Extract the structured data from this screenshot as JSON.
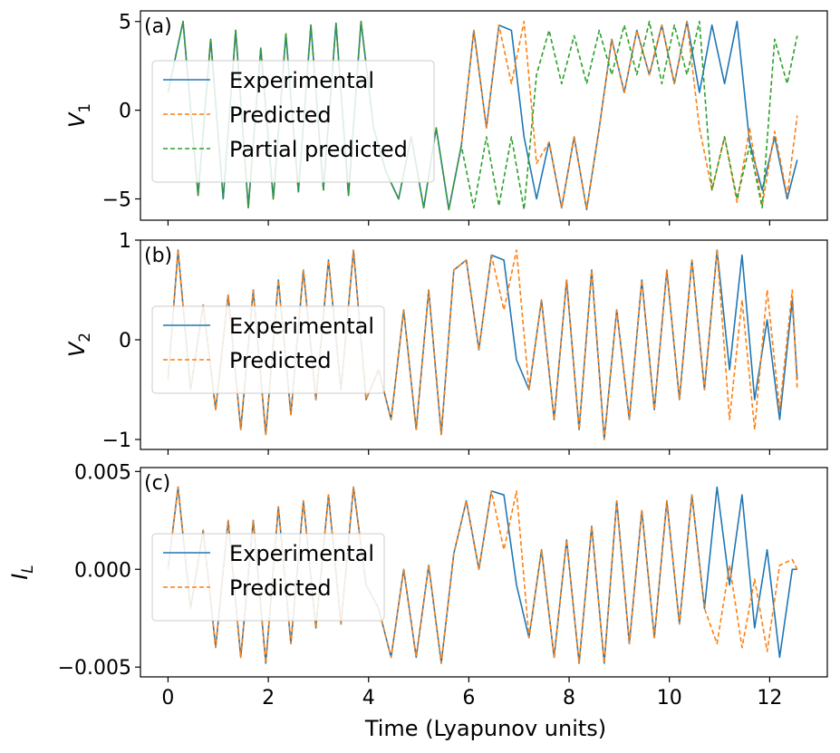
{
  "xlabel": "Time (Lyapunov units)",
  "x_ticks": [
    "0",
    "2",
    "4",
    "6",
    "8",
    "10",
    "12"
  ],
  "colors": {
    "experimental": "#1f77b4",
    "predicted": "#ff7f0e",
    "partial": "#2ca02c"
  },
  "chart_data": [
    {
      "type": "line",
      "panel": "(a)",
      "ylabel": "V_1",
      "xlim": [
        -0.55,
        13.15
      ],
      "ylim": [
        -6.2,
        5.6
      ],
      "x_ticks": [
        0,
        2,
        4,
        6,
        8,
        10,
        12
      ],
      "y_ticks": [
        -5,
        0,
        5
      ],
      "y_tick_labels": [
        "−5",
        "0",
        "5"
      ],
      "legend": "upper-left",
      "series": [
        {
          "name": "Experimental",
          "style": "solid",
          "x": [
            0,
            0.3,
            0.6,
            0.85,
            1.1,
            1.35,
            1.6,
            1.85,
            2.1,
            2.35,
            2.6,
            2.85,
            3.1,
            3.35,
            3.6,
            3.85,
            4.1,
            4.35,
            4.6,
            4.85,
            5.1,
            5.35,
            5.6,
            5.85,
            6.1,
            6.35,
            6.6,
            6.85,
            7.1,
            7.35,
            7.6,
            7.85,
            8.1,
            8.35,
            8.6,
            8.85,
            9.1,
            9.35,
            9.6,
            9.85,
            10.1,
            10.35,
            10.6,
            10.85,
            11.1,
            11.35,
            11.6,
            11.85,
            12.1,
            12.35,
            12.55
          ],
          "y": [
            1.0,
            5.0,
            -4.8,
            4.0,
            -5.0,
            4.5,
            -5.5,
            3.5,
            -5.0,
            4.3,
            -4.6,
            4.8,
            -4.5,
            4.9,
            -4.8,
            5.0,
            -1.0,
            -3.5,
            -5.0,
            -1.5,
            -5.5,
            -1.0,
            -5.6,
            -2.0,
            4.5,
            -1.0,
            4.8,
            4.5,
            -1.5,
            -5.0,
            -1.8,
            -5.5,
            -1.5,
            -5.6,
            -1.0,
            4.0,
            1.0,
            4.5,
            2.0,
            4.8,
            1.5,
            5.0,
            1.0,
            4.8,
            1.5,
            5.0,
            -1.8,
            -4.5,
            -1.5,
            -5.0,
            -2.8
          ]
        },
        {
          "name": "Predicted",
          "style": "dashed",
          "x": [
            0,
            0.3,
            0.6,
            0.85,
            1.1,
            1.35,
            1.6,
            1.85,
            2.1,
            2.35,
            2.6,
            2.85,
            3.1,
            3.35,
            3.6,
            3.85,
            4.1,
            4.35,
            4.6,
            4.85,
            5.1,
            5.35,
            5.6,
            5.85,
            6.1,
            6.35,
            6.6,
            6.85,
            7.1,
            7.35,
            7.6,
            7.85,
            8.1,
            8.35,
            8.6,
            8.85,
            9.1,
            9.35,
            9.6,
            9.85,
            10.1,
            10.35,
            10.6,
            10.85,
            11.1,
            11.35,
            11.6,
            11.85,
            12.1,
            12.35,
            12.55
          ],
          "y": [
            1.0,
            5.0,
            -4.8,
            4.0,
            -5.0,
            4.5,
            -5.5,
            3.5,
            -5.0,
            4.3,
            -4.6,
            4.8,
            -4.5,
            4.9,
            -4.8,
            5.0,
            -1.0,
            -3.5,
            -5.0,
            -1.5,
            -5.5,
            -1.0,
            -5.6,
            -2.0,
            4.5,
            -1.0,
            4.8,
            1.5,
            5.0,
            -3.0,
            -1.8,
            -5.5,
            -1.5,
            -5.6,
            -1.0,
            4.0,
            1.0,
            4.5,
            2.0,
            4.8,
            1.5,
            5.0,
            -1.0,
            -4.5,
            -1.5,
            -5.2,
            -1.0,
            -5.4,
            -1.2,
            -4.8,
            -0.3
          ]
        },
        {
          "name": "Partial predicted",
          "style": "dashed",
          "x": [
            0,
            0.3,
            0.6,
            0.85,
            1.1,
            1.35,
            1.6,
            1.85,
            2.1,
            2.35,
            2.6,
            2.85,
            3.1,
            3.35,
            3.6,
            3.85,
            4.1,
            4.35,
            4.6,
            4.85,
            5.1,
            5.35,
            5.6,
            5.85,
            6.1,
            6.35,
            6.6,
            6.85,
            7.1,
            7.35,
            7.6,
            7.85,
            8.1,
            8.35,
            8.6,
            8.85,
            9.1,
            9.35,
            9.6,
            9.85,
            10.1,
            10.35,
            10.6,
            10.85,
            11.1,
            11.35,
            11.6,
            11.85,
            12.1,
            12.35,
            12.55
          ],
          "y": [
            1.0,
            5.0,
            -4.8,
            4.0,
            -5.0,
            4.5,
            -5.5,
            3.5,
            -5.0,
            4.3,
            -4.6,
            4.8,
            -4.5,
            4.9,
            -4.8,
            5.0,
            -1.0,
            -3.5,
            -5.0,
            -1.5,
            -5.5,
            -1.0,
            -5.6,
            -2.0,
            -5.5,
            -1.5,
            -5.4,
            -1.5,
            -5.6,
            2.0,
            4.5,
            1.5,
            4.2,
            1.5,
            4.5,
            2.0,
            4.8,
            2.0,
            5.0,
            1.5,
            4.8,
            2.0,
            5.0,
            -4.5,
            -1.5,
            -5.0,
            -2.0,
            -5.5,
            4.0,
            1.5,
            4.2
          ]
        }
      ]
    },
    {
      "type": "line",
      "panel": "(b)",
      "ylabel": "V_2",
      "xlim": [
        -0.55,
        13.15
      ],
      "ylim": [
        -1.1,
        1.0
      ],
      "x_ticks": [
        0,
        2,
        4,
        6,
        8,
        10,
        12
      ],
      "y_ticks": [
        -1,
        0,
        1
      ],
      "y_tick_labels": [
        "−1",
        "0",
        "1"
      ],
      "legend": "center-left",
      "series": [
        {
          "name": "Experimental",
          "style": "solid",
          "x": [
            0,
            0.2,
            0.45,
            0.7,
            0.95,
            1.2,
            1.45,
            1.7,
            1.95,
            2.2,
            2.45,
            2.7,
            2.95,
            3.2,
            3.45,
            3.7,
            3.95,
            4.2,
            4.45,
            4.7,
            4.95,
            5.2,
            5.45,
            5.7,
            5.95,
            6.2,
            6.45,
            6.7,
            6.95,
            7.2,
            7.45,
            7.7,
            7.95,
            8.2,
            8.45,
            8.7,
            8.95,
            9.2,
            9.45,
            9.7,
            9.95,
            10.2,
            10.45,
            10.7,
            10.95,
            11.2,
            11.45,
            11.7,
            11.95,
            12.2,
            12.45,
            12.55
          ],
          "y": [
            -0.4,
            0.9,
            -0.5,
            0.35,
            -0.7,
            0.45,
            -0.9,
            0.5,
            -0.95,
            0.6,
            -0.75,
            0.7,
            -0.6,
            0.8,
            -0.5,
            0.9,
            -0.6,
            -0.3,
            -0.8,
            0.3,
            -0.9,
            0.5,
            -0.95,
            0.7,
            0.8,
            -0.1,
            0.85,
            0.8,
            -0.2,
            -0.5,
            0.4,
            -0.8,
            0.6,
            -0.9,
            0.7,
            -1.0,
            0.3,
            -0.8,
            0.6,
            -0.7,
            0.7,
            -0.6,
            0.8,
            -0.5,
            0.9,
            -0.3,
            0.85,
            -0.6,
            0.2,
            -0.8,
            0.4,
            -0.4
          ]
        },
        {
          "name": "Predicted",
          "style": "dashed",
          "x": [
            0,
            0.2,
            0.45,
            0.7,
            0.95,
            1.2,
            1.45,
            1.7,
            1.95,
            2.2,
            2.45,
            2.7,
            2.95,
            3.2,
            3.45,
            3.7,
            3.95,
            4.2,
            4.45,
            4.7,
            4.95,
            5.2,
            5.45,
            5.7,
            5.95,
            6.2,
            6.45,
            6.7,
            6.95,
            7.2,
            7.45,
            7.7,
            7.95,
            8.2,
            8.45,
            8.7,
            8.95,
            9.2,
            9.45,
            9.7,
            9.95,
            10.2,
            10.45,
            10.7,
            10.95,
            11.2,
            11.45,
            11.7,
            11.95,
            12.2,
            12.45,
            12.55
          ],
          "y": [
            -0.4,
            0.9,
            -0.5,
            0.35,
            -0.7,
            0.45,
            -0.9,
            0.5,
            -0.95,
            0.6,
            -0.75,
            0.7,
            -0.6,
            0.8,
            -0.5,
            0.9,
            -0.6,
            -0.3,
            -0.8,
            0.3,
            -0.9,
            0.5,
            -0.95,
            0.7,
            0.8,
            -0.1,
            0.85,
            0.3,
            0.9,
            -0.5,
            0.4,
            -0.8,
            0.6,
            -0.9,
            0.7,
            -1.0,
            0.3,
            -0.8,
            0.6,
            -0.7,
            0.7,
            -0.6,
            0.8,
            -0.5,
            0.9,
            -0.8,
            0.4,
            -0.9,
            0.5,
            -0.7,
            0.5,
            -0.5
          ]
        }
      ]
    },
    {
      "type": "line",
      "panel": "(c)",
      "ylabel": "I_L",
      "xlim": [
        -0.55,
        13.15
      ],
      "ylim": [
        -0.0055,
        0.0052
      ],
      "x_ticks": [
        0,
        2,
        4,
        6,
        8,
        10,
        12
      ],
      "y_ticks": [
        -0.005,
        0,
        0.005
      ],
      "y_tick_labels": [
        "−0.005",
        "0.000",
        "0.005"
      ],
      "legend": "center-left",
      "series": [
        {
          "name": "Experimental",
          "style": "solid",
          "x": [
            0,
            0.2,
            0.45,
            0.7,
            0.95,
            1.2,
            1.45,
            1.7,
            1.95,
            2.2,
            2.45,
            2.7,
            2.95,
            3.2,
            3.45,
            3.7,
            3.95,
            4.2,
            4.45,
            4.7,
            4.95,
            5.2,
            5.45,
            5.7,
            5.95,
            6.2,
            6.45,
            6.7,
            6.95,
            7.2,
            7.45,
            7.7,
            7.95,
            8.2,
            8.45,
            8.7,
            8.95,
            9.2,
            9.45,
            9.7,
            9.95,
            10.2,
            10.45,
            10.7,
            10.95,
            11.2,
            11.45,
            11.7,
            11.95,
            12.2,
            12.45,
            12.55
          ],
          "y": [
            0.0,
            0.0042,
            -0.002,
            0.002,
            -0.004,
            0.0025,
            -0.0045,
            0.0025,
            -0.0048,
            0.0032,
            -0.0038,
            0.0035,
            -0.003,
            0.0038,
            -0.0028,
            0.0042,
            -0.0008,
            -0.002,
            -0.0045,
            0.0,
            -0.0045,
            0.0002,
            -0.0048,
            0.0008,
            0.0035,
            0.0,
            0.004,
            0.0038,
            -0.0008,
            -0.0035,
            0.001,
            -0.0045,
            0.0015,
            -0.0048,
            0.0022,
            -0.0048,
            0.0035,
            -0.0038,
            0.003,
            -0.0035,
            0.0035,
            -0.0028,
            0.0038,
            -0.002,
            0.0042,
            -0.0008,
            0.0038,
            -0.003,
            0.001,
            -0.0045,
            0.0,
            0.0
          ]
        },
        {
          "name": "Predicted",
          "style": "dashed",
          "x": [
            0,
            0.2,
            0.45,
            0.7,
            0.95,
            1.2,
            1.45,
            1.7,
            1.95,
            2.2,
            2.45,
            2.7,
            2.95,
            3.2,
            3.45,
            3.7,
            3.95,
            4.2,
            4.45,
            4.7,
            4.95,
            5.2,
            5.45,
            5.7,
            5.95,
            6.2,
            6.45,
            6.7,
            6.95,
            7.2,
            7.45,
            7.7,
            7.95,
            8.2,
            8.45,
            8.7,
            8.95,
            9.2,
            9.45,
            9.7,
            9.95,
            10.2,
            10.45,
            10.7,
            10.95,
            11.2,
            11.45,
            11.7,
            11.95,
            12.2,
            12.45,
            12.55
          ],
          "y": [
            0.0,
            0.0042,
            -0.002,
            0.002,
            -0.004,
            0.0025,
            -0.0045,
            0.0025,
            -0.0048,
            0.0032,
            -0.0038,
            0.0035,
            -0.003,
            0.0038,
            -0.0028,
            0.0042,
            -0.0008,
            -0.002,
            -0.0045,
            0.0,
            -0.0045,
            0.0002,
            -0.0048,
            0.0008,
            0.0035,
            0.0,
            0.004,
            0.001,
            0.004,
            -0.0035,
            0.001,
            -0.0045,
            0.0015,
            -0.0048,
            0.0022,
            -0.0048,
            0.0035,
            -0.0038,
            0.003,
            -0.0035,
            0.0035,
            -0.0028,
            0.0038,
            -0.002,
            -0.0038,
            0.0002,
            -0.004,
            -0.0005,
            -0.0042,
            0.0002,
            0.0005,
            0.0
          ]
        }
      ]
    }
  ]
}
